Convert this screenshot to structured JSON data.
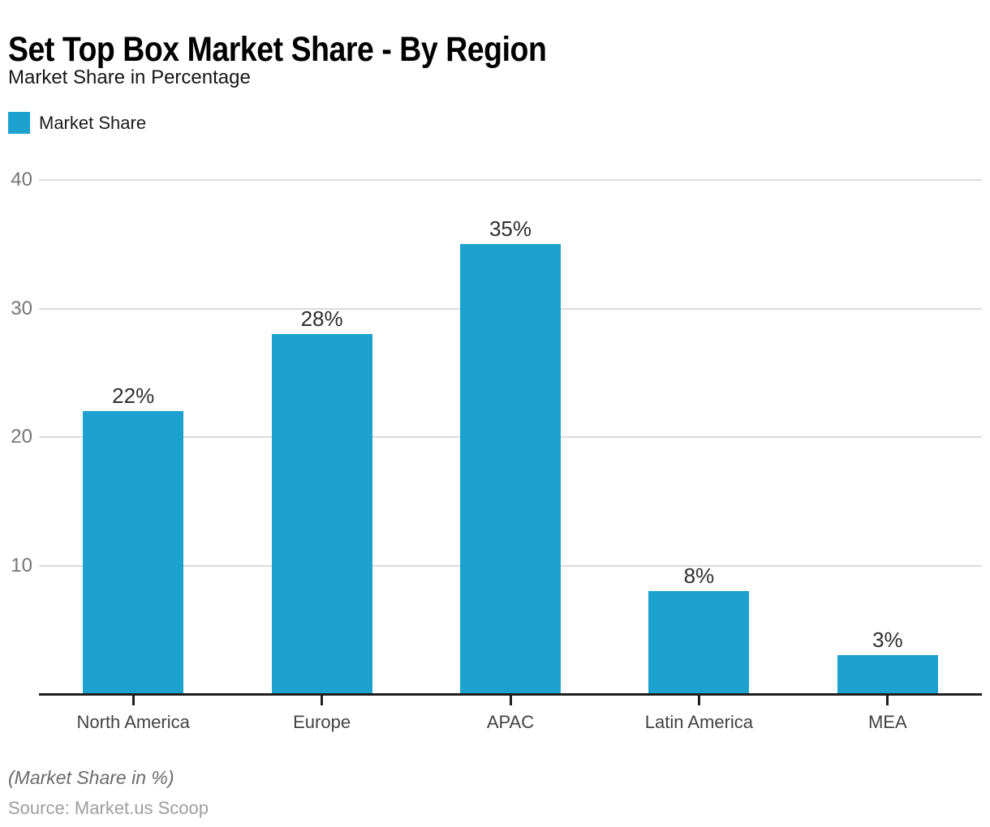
{
  "header": {
    "title": "Set Top Box Market Share - By Region",
    "subtitle": "Market Share in Percentage"
  },
  "legend": {
    "label": "Market Share"
  },
  "chart_data": {
    "type": "bar",
    "title": "Set Top Box Market Share - By Region",
    "subtitle": "Market Share in Percentage",
    "series_name": "Market Share",
    "categories": [
      "North America",
      "Europe",
      "APAC",
      "Latin America",
      "MEA"
    ],
    "values": [
      22,
      28,
      35,
      8,
      3
    ],
    "value_labels": [
      "22%",
      "28%",
      "35%",
      "8%",
      "3%"
    ],
    "xlabel": "",
    "ylabel": "",
    "ylim": [
      0,
      40
    ],
    "yticks": [
      40,
      30,
      20,
      10
    ],
    "grid": true,
    "legend_position": "top-left"
  },
  "footer": {
    "note": "(Market Share in %)",
    "source": "Source: Market.us Scoop"
  },
  "colors": {
    "bar": "#1DA2CF",
    "grid": "#dbdbdb",
    "axis": "#1f1f1f",
    "y_tick_label": "#757575",
    "x_tick_label": "#424242",
    "value_label": "#2e2e2e",
    "note": "#6b6b6b",
    "source": "#9e9e9e"
  }
}
